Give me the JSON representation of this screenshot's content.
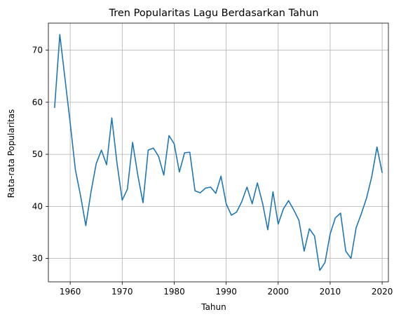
{
  "chart_data": {
    "type": "line",
    "title": "Tren Popularitas Lagu Berdasarkan Tahun",
    "xlabel": "Tahun",
    "ylabel": "Rata-rata Popularitas",
    "xlim": [
      1955.8,
      2021.2
    ],
    "ylim": [
      25.5,
      75.2
    ],
    "xticks": [
      1960,
      1970,
      1980,
      1990,
      2000,
      2010,
      2020
    ],
    "yticks": [
      30,
      40,
      50,
      60,
      70
    ],
    "grid": true,
    "series": [
      {
        "color": "#1f77b4",
        "x": [
          1957,
          1958,
          1959,
          1960,
          1961,
          1962,
          1963,
          1964,
          1965,
          1966,
          1967,
          1968,
          1969,
          1970,
          1971,
          1972,
          1973,
          1974,
          1975,
          1976,
          1977,
          1978,
          1979,
          1980,
          1981,
          1982,
          1983,
          1984,
          1985,
          1986,
          1987,
          1988,
          1989,
          1990,
          1991,
          1992,
          1993,
          1994,
          1995,
          1996,
          1997,
          1998,
          1999,
          2000,
          2001,
          2002,
          2003,
          2004,
          2005,
          2006,
          2007,
          2008,
          2009,
          2010,
          2011,
          2012,
          2013,
          2014,
          2015,
          2016,
          2017,
          2018,
          2019,
          2020
        ],
        "y": [
          59.0,
          73.0,
          64.5,
          56.0,
          47.0,
          42.0,
          36.3,
          42.8,
          48.2,
          50.8,
          48.0,
          57.0,
          48.3,
          41.2,
          43.3,
          52.3,
          46.0,
          40.7,
          50.8,
          51.2,
          49.6,
          46.0,
          53.6,
          52.0,
          46.6,
          50.3,
          50.4,
          43.0,
          42.6,
          43.5,
          43.7,
          42.5,
          45.8,
          40.5,
          38.3,
          38.9,
          40.9,
          43.7,
          40.5,
          44.5,
          40.6,
          35.5,
          42.8,
          36.6,
          39.5,
          41.1,
          39.3,
          37.3,
          31.4,
          35.7,
          34.3,
          27.7,
          29.2,
          34.7,
          37.8,
          38.7,
          31.4,
          30.0,
          35.9,
          38.6,
          41.6,
          45.7,
          51.4,
          46.5
        ]
      }
    ]
  }
}
